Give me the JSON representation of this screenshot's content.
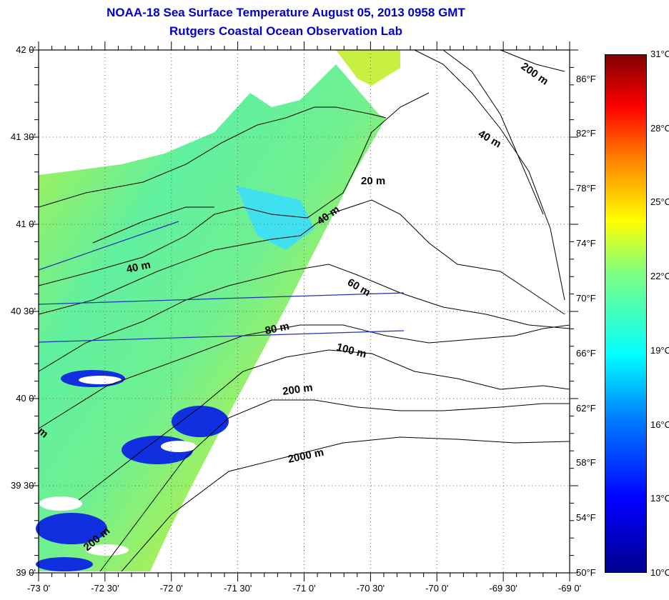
{
  "title": {
    "line1": "NOAA-18 Sea Surface Temperature August 05, 2013 0958 GMT",
    "line2": "Rutgers Coastal Ocean Observation Lab"
  },
  "lat_labels": [
    "42 0'",
    "41 30'",
    "41 0'",
    "40 30'",
    "40 0'",
    "39 30'",
    "39 0'"
  ],
  "lon_labels": [
    "-73 0'",
    "-72 30'",
    "-72 0'",
    "-71 30'",
    "-71 0'",
    "-70 30'",
    "-70 0'",
    "-69 30'",
    "-69 0'"
  ],
  "colorbar": {
    "fahrenheit": [
      "86°F",
      "82°F",
      "78°F",
      "74°F",
      "70°F",
      "66°F",
      "62°F",
      "58°F",
      "54°F",
      "50°F"
    ],
    "celsius": [
      "31°C",
      "28°C",
      "25°C",
      "22°C",
      "19°C",
      "16°C",
      "13°C",
      "10°C"
    ],
    "range_c": [
      10,
      31
    ],
    "colors": [
      "#00008f",
      "#0000ff",
      "#0080ff",
      "#00ffff",
      "#80ff80",
      "#ffff00",
      "#ff8000",
      "#ff0000",
      "#800000"
    ]
  },
  "contour_labels": [
    "200 m",
    "40 m",
    "20 m",
    "40 m",
    "40 m",
    "60 m",
    "80 m",
    "100 m",
    "200 m",
    "2000 m",
    "200 m",
    "m"
  ]
}
